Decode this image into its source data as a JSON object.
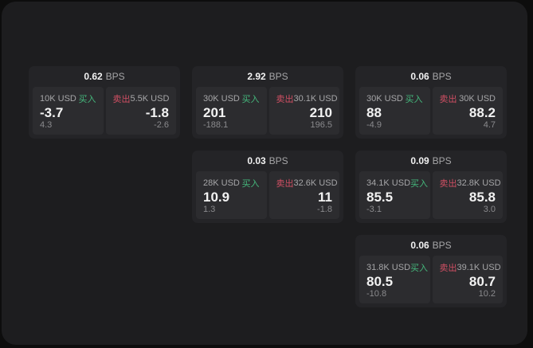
{
  "colors": {
    "page_bg": "#0d0d0d",
    "panel_bg": "#1d1d1f",
    "card_bg": "#242427",
    "tile_bg": "#2c2c2f",
    "buy_green": "#45b87c",
    "sell_red": "#d04f63",
    "text_primary": "#f2f2f2",
    "text_secondary": "#a6a6a8",
    "text_tertiary": "#8a8a8d"
  },
  "labels": {
    "bps_unit": "BPS",
    "buy": "买入",
    "sell": "卖出"
  },
  "cards": [
    {
      "row": 1,
      "col": 1,
      "bps": "0.62",
      "buy": {
        "amount": "10K USD",
        "value": "-3.7",
        "change": "4.3"
      },
      "sell": {
        "amount": "5.5K USD",
        "value": "-1.8",
        "change": "-2.6"
      }
    },
    {
      "row": 1,
      "col": 2,
      "bps": "2.92",
      "buy": {
        "amount": "30K USD",
        "value": "201",
        "change": "-188.1"
      },
      "sell": {
        "amount": "30.1K USD",
        "value": "210",
        "change": "196.5"
      }
    },
    {
      "row": 1,
      "col": 3,
      "bps": "0.06",
      "buy": {
        "amount": "30K USD",
        "value": "88",
        "change": "-4.9"
      },
      "sell": {
        "amount": "30K USD",
        "value": "88.2",
        "change": "4.7"
      }
    },
    {
      "row": 2,
      "col": 2,
      "bps": "0.03",
      "buy": {
        "amount": "28K USD",
        "value": "10.9",
        "change": "1.3"
      },
      "sell": {
        "amount": "32.6K USD",
        "value": "11",
        "change": "-1.8"
      }
    },
    {
      "row": 2,
      "col": 3,
      "bps": "0.09",
      "buy": {
        "amount": "34.1K USD",
        "value": "85.5",
        "change": "-3.1"
      },
      "sell": {
        "amount": "32.8K USD",
        "value": "85.8",
        "change": "3.0"
      }
    },
    {
      "row": 3,
      "col": 3,
      "bps": "0.06",
      "buy": {
        "amount": "31.8K USD",
        "value": "80.5",
        "change": "-10.8"
      },
      "sell": {
        "amount": "39.1K USD",
        "value": "80.7",
        "change": "10.2"
      }
    }
  ]
}
